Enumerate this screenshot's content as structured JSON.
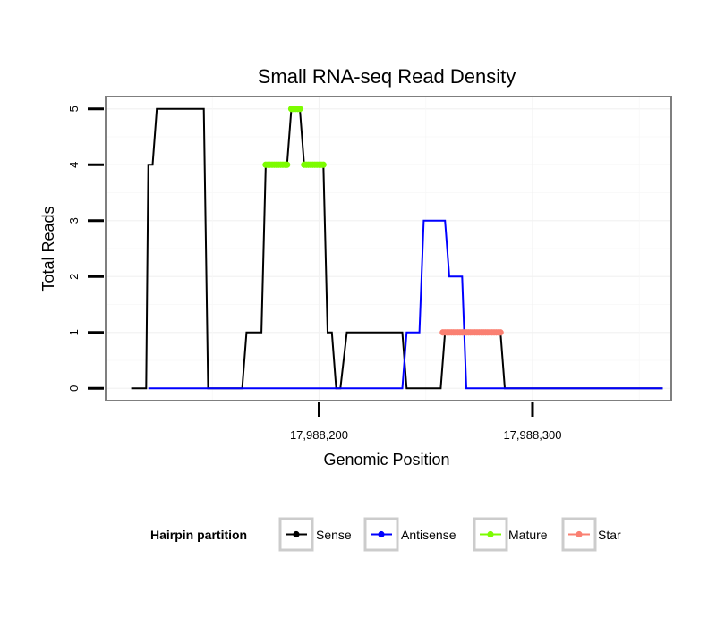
{
  "chart_data": {
    "type": "line",
    "title": "Small RNA-seq Read Density",
    "xlabel": "Genomic Position",
    "ylabel": "Total Reads",
    "xlim": [
      17988100,
      17988365
    ],
    "ylim": [
      -0.22,
      5.22
    ],
    "x_ticks": [
      {
        "value": 17988200,
        "label": "17,988,200"
      },
      {
        "value": 17988300,
        "label": "17,988,300"
      }
    ],
    "y_ticks": [
      {
        "value": 0,
        "label": "0"
      },
      {
        "value": 1,
        "label": "1"
      },
      {
        "value": 2,
        "label": "2"
      },
      {
        "value": 3,
        "label": "3"
      },
      {
        "value": 4,
        "label": "4"
      },
      {
        "value": 5,
        "label": "5"
      }
    ],
    "series": [
      {
        "name": "Sense",
        "color": "#000000",
        "x": [
          17988112,
          17988119,
          17988120,
          17988122,
          17988124,
          17988146,
          17988148,
          17988164,
          17988166,
          17988173,
          17988175,
          17988185,
          17988187,
          17988191,
          17988193,
          17988202,
          17988204,
          17988206,
          17988208,
          17988210,
          17988213,
          17988239,
          17988241,
          17988257,
          17988259,
          17988285,
          17988287,
          17988361
        ],
        "y": [
          0,
          0,
          4,
          4,
          5,
          5,
          0,
          0,
          1,
          1,
          4,
          4,
          5,
          5,
          4,
          4,
          1,
          1,
          0,
          0,
          1,
          1,
          0,
          0,
          1,
          1,
          0,
          0
        ]
      },
      {
        "name": "Antisense",
        "color": "#0000FF",
        "x": [
          17988120,
          17988239,
          17988241,
          17988247,
          17988249,
          17988259,
          17988261,
          17988267,
          17988269,
          17988274,
          17988276,
          17988361
        ],
        "y": [
          0,
          0,
          1,
          1,
          3,
          3,
          2,
          2,
          0,
          0,
          0,
          0
        ]
      },
      {
        "name": "Mature",
        "color": "#7CFC00",
        "points": [
          {
            "x_start": 17988175,
            "x_end": 17988185,
            "y": 4
          },
          {
            "x_start": 17988187,
            "x_end": 17988191,
            "y": 5
          },
          {
            "x_start": 17988193,
            "x_end": 17988202,
            "y": 4
          }
        ]
      },
      {
        "name": "Star",
        "color": "#FA8072",
        "points": [
          {
            "x_start": 17988258,
            "x_end": 17988285,
            "y": 1
          }
        ]
      }
    ],
    "legend": {
      "title": "Hairpin partition",
      "position": "bottom",
      "entries": [
        {
          "name": "Sense",
          "color": "#000000"
        },
        {
          "name": "Antisense",
          "color": "#0000FF"
        },
        {
          "name": "Mature",
          "color": "#7CFC00"
        },
        {
          "name": "Star",
          "color": "#FA8072"
        }
      ]
    }
  }
}
